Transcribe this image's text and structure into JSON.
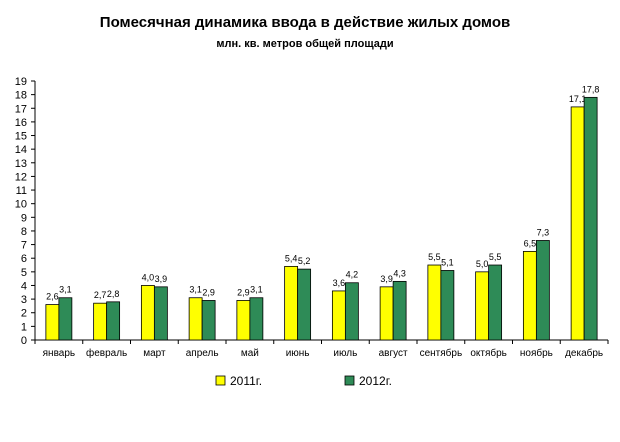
{
  "chart_data": {
    "type": "bar",
    "title": "Помесячная динамика ввода в действие жилых домов",
    "subtitle": "млн. кв. метров общей площади",
    "categories": [
      "январь",
      "февраль",
      "март",
      "апрель",
      "май",
      "июнь",
      "июль",
      "август",
      "сентябрь",
      "октябрь",
      "ноябрь",
      "декабрь"
    ],
    "series": [
      {
        "name": "2011г.",
        "color": "#ffff00",
        "values": [
          2.6,
          2.7,
          4.0,
          3.1,
          2.9,
          5.4,
          3.6,
          3.9,
          5.5,
          5.0,
          6.5,
          17.1
        ],
        "labels": [
          "2,6",
          "2,7",
          "4,0",
          "3,1",
          "2,9",
          "5,4",
          "3,6",
          "3,9",
          "5,5",
          "5,0",
          "6,5",
          "17,1"
        ]
      },
      {
        "name": "2012г.",
        "color": "#2e8b57",
        "values": [
          3.1,
          2.8,
          3.9,
          2.9,
          3.1,
          5.2,
          4.2,
          4.3,
          5.1,
          5.5,
          7.3,
          17.8
        ],
        "labels": [
          "3,1",
          "2,8",
          "3,9",
          "2,9",
          "3,1",
          "5,2",
          "4,2",
          "4,3",
          "5,1",
          "5,5",
          "7,3",
          "17,8"
        ]
      }
    ],
    "ylim": [
      0,
      19
    ],
    "yticks": [
      0,
      1,
      2,
      3,
      4,
      5,
      6,
      7,
      8,
      9,
      10,
      11,
      12,
      13,
      14,
      15,
      16,
      17,
      18,
      19
    ],
    "xlabel": "",
    "ylabel": "",
    "grid": false,
    "legend": "bottom"
  }
}
